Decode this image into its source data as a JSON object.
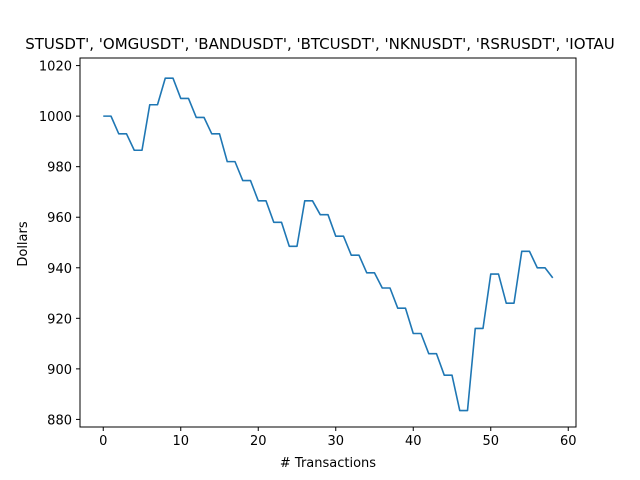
{
  "chart_data": {
    "type": "line",
    "title": "STUSDT', 'OMGUSDT', 'BANDUSDT', 'BTCUSDT', 'NKNUSDT', 'RSRUSDT', 'IOTAU",
    "xlabel": "# Transactions",
    "ylabel": "Dollars",
    "xlim": [
      -3,
      61
    ],
    "ylim": [
      877,
      1023
    ],
    "xticks": [
      0,
      10,
      20,
      30,
      40,
      50,
      60
    ],
    "yticks": [
      880,
      900,
      920,
      940,
      960,
      980,
      1000,
      1020
    ],
    "grid": false,
    "legend": "none",
    "color": "#1f77b4",
    "series": [
      {
        "x": [
          0,
          1,
          2,
          3,
          4,
          5,
          6,
          7,
          8,
          9,
          10,
          11,
          12,
          13,
          14,
          15,
          16,
          17,
          18,
          19,
          20,
          21,
          22,
          23,
          24,
          25,
          26,
          27,
          28,
          29,
          30,
          31,
          32,
          33,
          34,
          35,
          36,
          37,
          38,
          39,
          40,
          41,
          42,
          43,
          44,
          45,
          46,
          47,
          48,
          49,
          50,
          51,
          52,
          53,
          54,
          55,
          56,
          57,
          58
        ],
        "values": [
          1000,
          1000,
          993,
          993,
          986.5,
          986.5,
          1004.5,
          1004.5,
          1015,
          1015,
          1007,
          1007,
          999.5,
          999.5,
          993,
          993,
          982,
          982,
          974.5,
          974.5,
          966.5,
          966.5,
          958,
          958,
          948.5,
          948.5,
          966.5,
          966.5,
          961,
          961,
          952.5,
          952.5,
          945,
          945,
          938,
          938,
          932,
          932,
          924,
          924,
          914,
          914,
          906,
          906,
          897.5,
          897.5,
          883.5,
          883.5,
          916,
          916,
          937.5,
          937.5,
          926,
          926,
          946.5,
          946.5,
          940,
          940,
          936
        ]
      }
    ]
  }
}
